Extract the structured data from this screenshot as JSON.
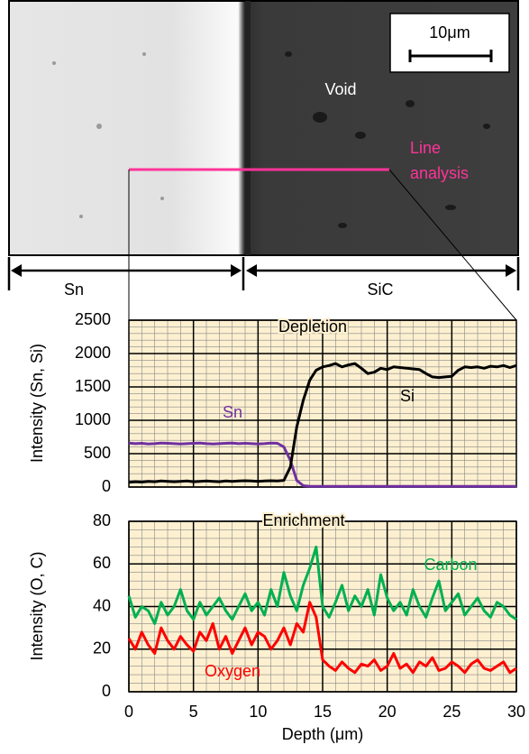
{
  "image": {
    "scale_bar": "10μm",
    "void_label": "Void",
    "line_label": [
      "Line",
      "analysis"
    ],
    "regions": [
      "Sn",
      "SiC"
    ]
  },
  "chart_data": [
    {
      "type": "line",
      "ylabel": "Intensity (Sn, Si)",
      "annotation": "Depletion",
      "x": [
        0,
        0.5,
        1,
        1.5,
        2,
        2.5,
        3,
        3.5,
        4,
        4.5,
        5,
        5.5,
        6,
        6.5,
        7,
        7.5,
        8,
        8.5,
        9,
        9.5,
        10,
        10.5,
        11,
        11.5,
        12,
        12.5,
        13,
        13.5,
        14,
        14.5,
        15,
        15.5,
        16,
        16.5,
        17,
        17.5,
        18,
        18.5,
        19,
        19.5,
        20,
        20.5,
        21,
        21.5,
        22,
        22.5,
        23,
        23.5,
        24,
        24.5,
        25,
        25.5,
        26,
        26.5,
        27,
        27.5,
        28,
        28.5,
        29,
        29.5,
        30
      ],
      "series": [
        {
          "name": "Sn",
          "color": "#7030a0",
          "values": [
            660,
            650,
            655,
            645,
            650,
            660,
            655,
            650,
            645,
            650,
            655,
            660,
            650,
            645,
            650,
            655,
            660,
            650,
            655,
            650,
            645,
            650,
            660,
            655,
            600,
            400,
            100,
            20,
            10,
            10,
            10,
            10,
            10,
            10,
            10,
            10,
            10,
            10,
            10,
            10,
            10,
            10,
            10,
            10,
            10,
            10,
            10,
            10,
            10,
            10,
            10,
            10,
            10,
            10,
            10,
            10,
            10,
            10,
            10,
            10,
            10
          ]
        },
        {
          "name": "Si",
          "color": "#000000",
          "values": [
            70,
            80,
            75,
            85,
            80,
            90,
            85,
            80,
            85,
            90,
            80,
            85,
            90,
            85,
            80,
            90,
            85,
            90,
            95,
            90,
            85,
            90,
            95,
            90,
            100,
            300,
            900,
            1300,
            1600,
            1750,
            1800,
            1820,
            1850,
            1800,
            1830,
            1850,
            1780,
            1700,
            1720,
            1780,
            1760,
            1800,
            1790,
            1780,
            1770,
            1760,
            1700,
            1650,
            1640,
            1650,
            1660,
            1750,
            1800,
            1790,
            1800,
            1780,
            1810,
            1800,
            1820,
            1790,
            1820
          ]
        }
      ],
      "xlim": [
        0,
        30
      ],
      "ylim": [
        0,
        2500
      ],
      "yticks": [
        0,
        500,
        1000,
        1500,
        2000,
        2500
      ],
      "grid": true
    },
    {
      "type": "line",
      "ylabel": "Intensity (O, C)",
      "xlabel": "Depth (μm)",
      "annotation": "Enrichment",
      "x": [
        0,
        0.5,
        1,
        1.5,
        2,
        2.5,
        3,
        3.5,
        4,
        4.5,
        5,
        5.5,
        6,
        6.5,
        7,
        7.5,
        8,
        8.5,
        9,
        9.5,
        10,
        10.5,
        11,
        11.5,
        12,
        12.5,
        13,
        13.5,
        14,
        14.5,
        15,
        15.5,
        16,
        16.5,
        17,
        17.5,
        18,
        18.5,
        19,
        19.5,
        20,
        20.5,
        21,
        21.5,
        22,
        22.5,
        23,
        23.5,
        24,
        24.5,
        25,
        25.5,
        26,
        26.5,
        27,
        27.5,
        28,
        28.5,
        29,
        29.5,
        30
      ],
      "series": [
        {
          "name": "Carbon",
          "color": "#00b050",
          "values": [
            45,
            35,
            40,
            38,
            32,
            42,
            36,
            40,
            48,
            38,
            34,
            42,
            36,
            40,
            44,
            38,
            34,
            40,
            46,
            38,
            42,
            36,
            48,
            40,
            56,
            45,
            38,
            50,
            58,
            68,
            40,
            35,
            42,
            50,
            38,
            45,
            40,
            48,
            36,
            55,
            44,
            38,
            42,
            36,
            48,
            40,
            35,
            44,
            52,
            38,
            42,
            46,
            36,
            40,
            44,
            38,
            35,
            42,
            40,
            36,
            34
          ]
        },
        {
          "name": "Oxygen",
          "color": "#ff0000",
          "values": [
            25,
            20,
            28,
            22,
            18,
            30,
            24,
            20,
            26,
            22,
            19,
            28,
            24,
            32,
            20,
            26,
            18,
            24,
            30,
            22,
            28,
            26,
            20,
            24,
            30,
            22,
            32,
            28,
            42,
            35,
            15,
            12,
            10,
            14,
            11,
            9,
            13,
            12,
            15,
            10,
            12,
            18,
            11,
            13,
            9,
            14,
            12,
            16,
            10,
            11,
            14,
            12,
            9,
            13,
            15,
            11,
            10,
            12,
            14,
            9,
            11
          ]
        }
      ],
      "xlim": [
        0,
        30
      ],
      "xticks": [
        0,
        5,
        10,
        15,
        20,
        25,
        30
      ],
      "ylim": [
        0,
        80
      ],
      "yticks": [
        0,
        20,
        40,
        60,
        80
      ],
      "grid": true
    }
  ]
}
